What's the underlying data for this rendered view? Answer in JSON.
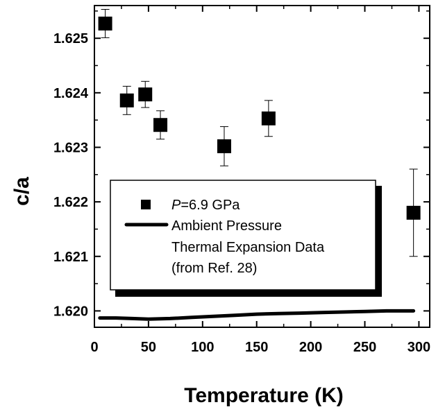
{
  "chart_data": {
    "type": "scatter",
    "title": "",
    "xlabel": "Temperature (K)",
    "ylabel": "c/a",
    "xlim": [
      0,
      310
    ],
    "ylim": [
      1.6197,
      1.6256
    ],
    "x_ticks": [
      0,
      50,
      100,
      150,
      200,
      250,
      300
    ],
    "x_tick_labels": [
      "0",
      "50",
      "100",
      "150",
      "200",
      "250",
      "300"
    ],
    "y_ticks": [
      1.62,
      1.621,
      1.622,
      1.623,
      1.624,
      1.625
    ],
    "y_tick_labels": [
      "1.620",
      "1.621",
      "1.622",
      "1.623",
      "1.624",
      "1.625"
    ],
    "grid": false,
    "legend_position": "center",
    "series": [
      {
        "name": "P=6.9 GPa",
        "legend_label_italic": "P",
        "legend_label_rest": "=6.9 GPa",
        "marker": "square",
        "color": "#000000",
        "points": [
          {
            "x": 10,
            "y": 1.62527,
            "err": 0.00026
          },
          {
            "x": 30,
            "y": 1.62386,
            "err": 0.00026
          },
          {
            "x": 47,
            "y": 1.62397,
            "err": 0.00024
          },
          {
            "x": 61,
            "y": 1.62341,
            "err": 0.00026
          },
          {
            "x": 120,
            "y": 1.62302,
            "err": 0.00036
          },
          {
            "x": 161,
            "y": 1.62353,
            "err": 0.00033
          },
          {
            "x": 295,
            "y": 1.6218,
            "err": 0.0008
          }
        ]
      },
      {
        "name": "Ambient Pressure Thermal Expansion Data (from Ref. 28)",
        "legend_lines": [
          "Ambient Pressure",
          "Thermal Expansion Data",
          "(from Ref. 28)"
        ],
        "style": "line",
        "color": "#000000",
        "points": [
          {
            "x": 5,
            "y": 1.61987
          },
          {
            "x": 20,
            "y": 1.61987
          },
          {
            "x": 35,
            "y": 1.61986
          },
          {
            "x": 50,
            "y": 1.61985
          },
          {
            "x": 70,
            "y": 1.61986
          },
          {
            "x": 90,
            "y": 1.61988
          },
          {
            "x": 110,
            "y": 1.6199
          },
          {
            "x": 130,
            "y": 1.61992
          },
          {
            "x": 150,
            "y": 1.61994
          },
          {
            "x": 170,
            "y": 1.61995
          },
          {
            "x": 190,
            "y": 1.61996
          },
          {
            "x": 210,
            "y": 1.61997
          },
          {
            "x": 230,
            "y": 1.61998
          },
          {
            "x": 250,
            "y": 1.61999
          },
          {
            "x": 270,
            "y": 1.62
          },
          {
            "x": 295,
            "y": 1.62
          }
        ]
      }
    ]
  }
}
